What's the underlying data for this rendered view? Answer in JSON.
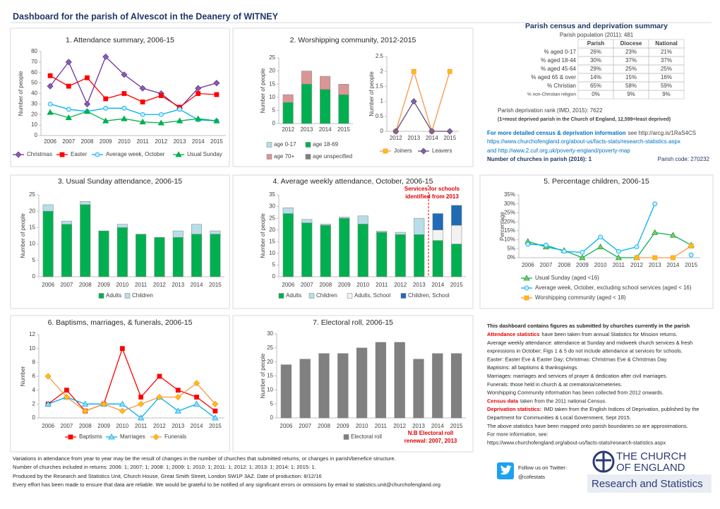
{
  "header": {
    "title": "Dashboard for the parish of Alvescot in the Deanery of WITNEY"
  },
  "chart_data": [
    {
      "type": "line",
      "title": "1. Attendance summary, 2006-15",
      "y_label": "Number of people",
      "categories": [
        "2006",
        "2007",
        "2008",
        "2009",
        "2010",
        "2011",
        "2012",
        "2013",
        "2014",
        "2015"
      ],
      "ylim": [
        0,
        80
      ],
      "yticks": [
        0,
        10,
        20,
        30,
        40,
        50,
        60,
        70,
        80
      ],
      "grid": false,
      "series": [
        {
          "name": "Christmas",
          "color": "#7030a0",
          "marker": "diamond",
          "marker_fill": "#8064a2",
          "values": [
            47,
            70,
            30,
            75,
            58,
            45,
            40,
            26,
            45,
            50
          ]
        },
        {
          "name": "Easter",
          "color": "#ff0000",
          "marker": "square",
          "marker_fill": "#ff0000",
          "values": [
            57,
            47,
            55,
            35,
            40,
            32,
            38,
            27,
            40,
            39
          ]
        },
        {
          "name": "Average week, October",
          "color": "#00b0f0",
          "marker": "circle",
          "marker_fill": "#c5e9fb",
          "values": [
            30,
            25,
            23,
            26,
            26,
            20,
            20,
            25,
            15,
            14
          ]
        },
        {
          "name": "Usual Sunday",
          "color": "#00b050",
          "marker": "triangle",
          "marker_fill": "#00b050",
          "values": [
            22,
            17,
            23,
            14,
            16,
            13,
            12,
            14,
            16,
            14
          ]
        }
      ]
    },
    {
      "type": "bar",
      "title": "2. Worshipping community, 2012-2015",
      "y_label": "Number of people",
      "categories": [
        "2012",
        "2013",
        "2014",
        "2015"
      ],
      "ylim": [
        0,
        25
      ],
      "yticks": [
        0,
        5,
        10,
        15,
        20,
        25
      ],
      "grid": false,
      "series": [
        {
          "name": "age 0-17",
          "color": "#b7dee8",
          "values": [
            0,
            0,
            0,
            0
          ]
        },
        {
          "name": "age 18-69",
          "color": "#00b050",
          "values": [
            8,
            15,
            13,
            11
          ]
        },
        {
          "name": "age 70+",
          "color": "#da9694",
          "values": [
            3,
            5,
            5,
            4
          ]
        },
        {
          "name": "age unspecified",
          "color": "#808080",
          "values": [
            0,
            0,
            0,
            0
          ]
        }
      ]
    },
    {
      "type": "line",
      "y_label": "Number of people",
      "categories": [
        "2012",
        "2013",
        "2014",
        "2015"
      ],
      "ylim": [
        0,
        2.5
      ],
      "yticks": [
        0,
        0.5,
        1,
        1.5,
        2,
        2.5
      ],
      "grid": false,
      "series": [
        {
          "name": "Joiners",
          "color": "#f79646",
          "marker": "square",
          "marker_fill": "#ffc000",
          "values": [
            0,
            2,
            0,
            2
          ]
        },
        {
          "name": "Leavers",
          "color": "#604a7b",
          "marker": "diamond",
          "marker_fill": "#8064a2",
          "values": [
            0,
            1,
            0,
            0
          ]
        }
      ]
    },
    {
      "type": "bar",
      "title": "3. Usual Sunday attendance, 2006-15",
      "y_label": "Number of people",
      "categories": [
        "2006",
        "2007",
        "2008",
        "2009",
        "2010",
        "2011",
        "2012",
        "2013",
        "2014",
        "2015"
      ],
      "ylim": [
        0,
        25
      ],
      "yticks": [
        0,
        5,
        10,
        15,
        20,
        25
      ],
      "grid": false,
      "series": [
        {
          "name": "Adults",
          "color": "#00b050",
          "values": [
            20,
            16,
            22,
            14,
            15,
            13,
            12,
            12,
            13,
            13
          ]
        },
        {
          "name": "Children",
          "color": "#b7dee8",
          "values": [
            2,
            1,
            1,
            0,
            1,
            0,
            0,
            2,
            3,
            1
          ]
        }
      ]
    },
    {
      "type": "bar",
      "title": "4. Average weekly attendance, October, 2006-15",
      "y_label": "Number of people",
      "categories": [
        "2006",
        "2007",
        "2008",
        "2009",
        "2010",
        "2011",
        "2012",
        "2013",
        "2014",
        "2015"
      ],
      "ylim": [
        0,
        35
      ],
      "yticks": [
        0,
        5,
        10,
        15,
        20,
        25,
        30,
        35
      ],
      "grid": false,
      "annotation": [
        "Services for schools",
        "identified from 2013"
      ],
      "series": [
        {
          "name": "Adults",
          "color": "#00b050",
          "values": [
            27,
            23,
            22,
            25,
            22.5,
            19,
            18,
            18,
            15.5,
            14
          ]
        },
        {
          "name": "Children",
          "color": "#b7dee8",
          "values": [
            2.5,
            1.5,
            0.5,
            0.5,
            3.5,
            0.5,
            1,
            7,
            0,
            0
          ]
        },
        {
          "name": "Adults, School",
          "color": "#f2f2f2",
          "values": [
            0,
            0,
            0,
            0,
            0,
            0,
            0,
            0,
            4.5,
            8
          ]
        },
        {
          "name": "Children, School",
          "color": "#1f6bb5",
          "values": [
            0,
            0,
            0,
            0,
            0,
            0,
            0,
            0,
            7,
            8.5
          ]
        }
      ]
    },
    {
      "type": "line",
      "title": "5. Percentage children, 2006-15",
      "y_label": "Percentage",
      "categories": [
        "2006",
        "2007",
        "2008",
        "2009",
        "2010",
        "2011",
        "2012",
        "2013",
        "2014",
        "2015"
      ],
      "ylim": [
        0,
        35
      ],
      "grid": false,
      "yticks": [
        {
          "value": 0,
          "label": "0%"
        },
        {
          "value": 5,
          "label": "5%"
        },
        {
          "value": 10,
          "label": "10%"
        },
        {
          "value": 15,
          "label": "15%"
        },
        {
          "value": 20,
          "label": "20%"
        },
        {
          "value": 25,
          "label": "25%"
        },
        {
          "value": 30,
          "label": "30%"
        },
        {
          "value": 35,
          "label": "35%"
        }
      ],
      "series": [
        {
          "name": "Usual Sunday (aged <16)",
          "color": "#00b050",
          "marker": "triangle",
          "marker_fill": "#9bbb59",
          "values": [
            9,
            6,
            4,
            0,
            6,
            0,
            0,
            14,
            12.5,
            7
          ]
        },
        {
          "name": "Average week, October, excluding school services (aged < 16)",
          "color": "#00b0f0",
          "marker": "circle",
          "marker_fill": "#c5e9fb",
          "values": [
            7.5,
            7,
            3.5,
            3,
            11.5,
            3.5,
            6,
            30,
            null,
            1.5
          ]
        },
        {
          "name": "Worshipping community (aged < 18)",
          "color": "#f79646",
          "marker": "square",
          "marker_fill": "#ffc000",
          "values": [
            null,
            null,
            null,
            null,
            null,
            null,
            0,
            0,
            0,
            6.5
          ]
        }
      ]
    },
    {
      "type": "line",
      "title": "6. Baptisms, marriages, & funerals, 2006-15",
      "y_label": "Number",
      "categories": [
        "2006",
        "2007",
        "2008",
        "2009",
        "2010",
        "2011",
        "2012",
        "2013",
        "2014",
        "2015"
      ],
      "ylim": [
        0,
        12
      ],
      "yticks": [
        0,
        2,
        4,
        6,
        8,
        10,
        12
      ],
      "grid": false,
      "series": [
        {
          "name": "Baptisms",
          "color": "#ff0000",
          "marker": "square",
          "marker_fill": "#ff0000",
          "values": [
            2,
            4,
            1,
            2,
            10,
            3,
            6,
            4,
            3,
            1
          ]
        },
        {
          "name": "Marriages",
          "color": "#00b0f0",
          "marker": "triangle",
          "marker_fill": "#9bd9f3",
          "values": [
            2,
            3,
            2,
            2,
            2,
            0,
            3,
            1,
            2,
            0
          ]
        },
        {
          "name": "Funerals",
          "color": "#f79646",
          "marker": "diamond",
          "marker_fill": "#ffc000",
          "values": [
            6,
            3,
            1,
            2,
            1,
            2,
            3,
            3,
            5,
            2
          ]
        }
      ]
    },
    {
      "type": "bar",
      "title": "7. Electoral roll, 2006-15",
      "y_label": "Number of people",
      "categories": [
        "2006",
        "2007",
        "2008",
        "2009",
        "2010",
        "2011",
        "2012",
        "2013",
        "2014",
        "2015"
      ],
      "ylim": [
        0,
        30
      ],
      "yticks": [
        0,
        5,
        10,
        15,
        20,
        25,
        30
      ],
      "grid": false,
      "annotation": [
        "N.B Electoral roll",
        "renewal: 2007, 2013"
      ],
      "series": [
        {
          "name": "Electoral roll",
          "color": "#808080",
          "values": [
            19,
            21,
            23,
            23,
            25,
            27,
            27,
            21,
            23,
            23
          ]
        }
      ]
    }
  ],
  "census": {
    "title": "Parish census and deprivation summary",
    "population": "Parish population (2011): 481",
    "columns": [
      "Parish",
      "Diocese",
      "National"
    ],
    "rows": [
      [
        "% aged 0-17",
        "26%",
        "23%",
        "21%"
      ],
      [
        "% aged 18-44",
        "30%",
        "37%",
        "37%"
      ],
      [
        "% aged 45-64",
        "29%",
        "25%",
        "25%"
      ],
      [
        "% aged 65 & over",
        "14%",
        "15%",
        "16%"
      ],
      [
        "% Christian",
        "65%",
        "58%",
        "59%"
      ],
      [
        "% non-Christian religion",
        "0%",
        "9%",
        "9%"
      ]
    ],
    "deprivation_rank": "Parish deprivation rank (IMD, 2015): 7622",
    "deprivation_note": "(1=most deprived parish in the Church of England, 12,599=least deprived)",
    "more_info_lead": "For more detailed census & deprivation information",
    "more_info_text": "see http://arcg.is/1RaS4CS",
    "link1": "https://www.churchofengland.org/about-us/facts-stats/research-statistics.aspx",
    "link2": "and http://www.2.cuf.org.uk/poverty-england/poverty-map",
    "churches": "Number of churches in parish (2016): 1",
    "parish_code": "Parish code: 270232"
  },
  "notes": {
    "heading": "This dashboard contains figures as submitted by churches currently in the parish",
    "lines": [
      {
        "lead": "Attendance statistics",
        "text": "have been taken from annual Statistics for Mission returns."
      },
      {
        "text": "Average weekly attendance: attendance at Sunday and midweek church services & fresh"
      },
      {
        "text": "expressions in October; Figs 1 & 5 do not include attendance at services for schools."
      },
      {
        "text": "Easter: Easter Eve & Easter Day; Christmas: Christmas Eve & Christmas Day."
      },
      {
        "text": "Baptisms: all baptisms & thanksgivings."
      },
      {
        "text": "Marriages: marriages and services of prayer & dedication after civil marriages."
      },
      {
        "text": "Funerals: those held in church & at crematoria/cemeteries."
      },
      {
        "text": "Worshipping Community information has been collected from 2012 onwards."
      },
      {
        "lead": "Census data",
        "text": "taken from the 2011 national Census."
      },
      {
        "lead": "Deprivation statistics:",
        "text": "IMD taken from the English Indices of Deprivation, published by the"
      },
      {
        "text": "Department for Communities & Local Government, Sept 2015."
      },
      {
        "text": "The above statistics have been mapped onto parish boundaries so are approximations."
      },
      {
        "text": "For more information, see:"
      }
    ],
    "link": "https://www.churchofengland.org/about-us/facts-stats/research-statistics.aspx"
  },
  "footer": {
    "variations": "Variations in attendance from year to year may be the result of changes in the number of churches that submitted returns, or changes in parish/benefice structure.",
    "churches_included": "Number of churches included in returns: 2006: 1; 2007: 1; 2008: 1; 2009: 1; 2010: 1; 2011: 1; 2012: 1; 2013: 1; 2014: 1; 2015: 1.",
    "produced_by": "Produced by the Research and Statistics Unit, Church House, Great Smith Street, London SW1P 3AZ. Date of production: 8/12/16",
    "disclaimer": "Every effort has been made to ensure that data are reliable. We would be grateful to be notified of any significant errors or omissions by email to statistics.unit@churchofengland.org"
  },
  "branding": {
    "twitter_label": "Follow us on Twitter:",
    "twitter_handle": "@cofestats",
    "logo_line1": "THE CHURCH",
    "logo_line2": "OF ENGLAND",
    "logo_sub": "Research and Statistics"
  }
}
